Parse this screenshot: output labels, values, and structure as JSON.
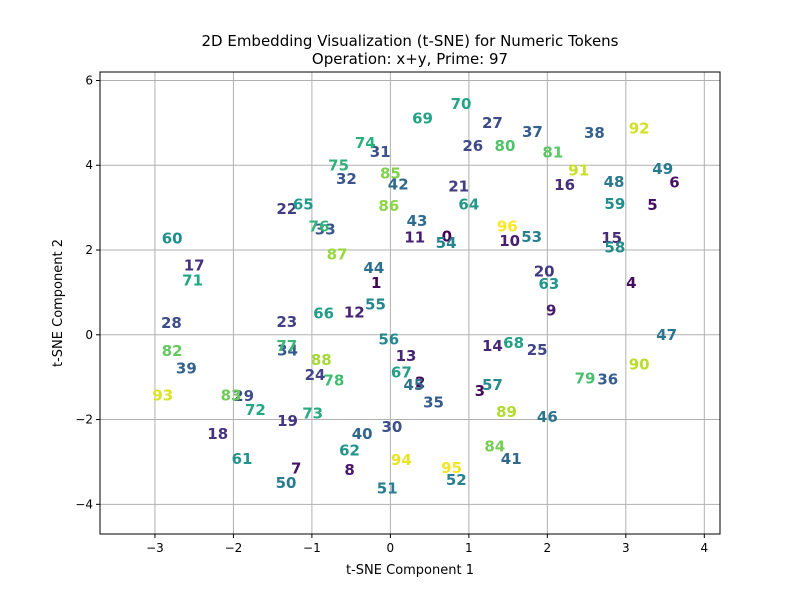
{
  "chart_data": {
    "type": "scatter",
    "title": "2D Embedding Visualization (t-SNE) for Numeric Tokens",
    "subtitle": "Operation: x+y, Prime: 97",
    "xlabel": "t-SNE Component 1",
    "ylabel": "t-SNE Component 2",
    "xlim": [
      -3.7,
      4.2
    ],
    "ylim": [
      -4.7,
      6.2
    ],
    "xticks": [
      -3,
      -2,
      -1,
      0,
      1,
      2,
      3,
      4
    ],
    "yticks": [
      -4,
      -2,
      0,
      2,
      4,
      6
    ],
    "xtick_labels": [
      "−3",
      "−2",
      "−1",
      "0",
      "1",
      "2",
      "3",
      "4"
    ],
    "ytick_labels": [
      "−4",
      "−2",
      "0",
      "2",
      "4",
      "6"
    ],
    "grid": true,
    "colormap": "viridis",
    "points": [
      {
        "label": "0",
        "x": 0.72,
        "y": 2.32
      },
      {
        "label": "1",
        "x": -0.18,
        "y": 1.22
      },
      {
        "label": "2",
        "x": 0.38,
        "y": -1.12
      },
      {
        "label": "3",
        "x": 1.14,
        "y": -1.33
      },
      {
        "label": "4",
        "x": 3.07,
        "y": 1.22
      },
      {
        "label": "5",
        "x": 3.34,
        "y": 3.06
      },
      {
        "label": "6",
        "x": 3.62,
        "y": 3.59
      },
      {
        "label": "7",
        "x": -1.2,
        "y": -3.15
      },
      {
        "label": "8",
        "x": -0.52,
        "y": -3.19
      },
      {
        "label": "9",
        "x": 2.05,
        "y": 0.57
      },
      {
        "label": "10",
        "x": 1.52,
        "y": 2.21
      },
      {
        "label": "11",
        "x": 0.31,
        "y": 2.29
      },
      {
        "label": "12",
        "x": -0.46,
        "y": 0.53
      },
      {
        "label": "13",
        "x": 0.2,
        "y": -0.5
      },
      {
        "label": "14",
        "x": 1.3,
        "y": -0.26
      },
      {
        "label": "15",
        "x": 2.82,
        "y": 2.28
      },
      {
        "label": "16",
        "x": 2.22,
        "y": 3.53
      },
      {
        "label": "17",
        "x": -2.5,
        "y": 1.63
      },
      {
        "label": "18",
        "x": -2.2,
        "y": -2.34
      },
      {
        "label": "19",
        "x": -1.31,
        "y": -2.03
      },
      {
        "label": "20",
        "x": 1.96,
        "y": 1.49
      },
      {
        "label": "21",
        "x": 0.87,
        "y": 3.5
      },
      {
        "label": "22",
        "x": -1.32,
        "y": 2.97
      },
      {
        "label": "23",
        "x": -1.32,
        "y": 0.3
      },
      {
        "label": "24",
        "x": -0.96,
        "y": -0.95
      },
      {
        "label": "25",
        "x": 1.87,
        "y": -0.36
      },
      {
        "label": "26",
        "x": 1.05,
        "y": 4.45
      },
      {
        "label": "27",
        "x": 1.3,
        "y": 5.0
      },
      {
        "label": "28",
        "x": -2.79,
        "y": 0.28
      },
      {
        "label": "29",
        "x": -1.87,
        "y": -1.45
      },
      {
        "label": "30",
        "x": 0.02,
        "y": -2.17
      },
      {
        "label": "31",
        "x": -0.13,
        "y": 4.31
      },
      {
        "label": "32",
        "x": -0.56,
        "y": 3.68
      },
      {
        "label": "33",
        "x": -0.83,
        "y": 2.48
      },
      {
        "label": "34",
        "x": -1.31,
        "y": -0.37
      },
      {
        "label": "35",
        "x": 0.55,
        "y": -1.6
      },
      {
        "label": "36",
        "x": 2.77,
        "y": -1.05
      },
      {
        "label": "37",
        "x": 1.81,
        "y": 4.79
      },
      {
        "label": "38",
        "x": 2.6,
        "y": 4.76
      },
      {
        "label": "39",
        "x": -2.6,
        "y": -0.8
      },
      {
        "label": "40",
        "x": -0.36,
        "y": -2.34
      },
      {
        "label": "41",
        "x": 1.54,
        "y": -2.93
      },
      {
        "label": "42",
        "x": 0.1,
        "y": 3.54
      },
      {
        "label": "43",
        "x": 0.34,
        "y": 2.69
      },
      {
        "label": "44",
        "x": -0.21,
        "y": 1.57
      },
      {
        "label": "45",
        "x": 0.3,
        "y": -1.18
      },
      {
        "label": "46",
        "x": 2.0,
        "y": -1.94
      },
      {
        "label": "47",
        "x": 3.52,
        "y": -0.01
      },
      {
        "label": "48",
        "x": 2.85,
        "y": 3.61
      },
      {
        "label": "49",
        "x": 3.47,
        "y": 3.91
      },
      {
        "label": "50",
        "x": -1.33,
        "y": -3.5
      },
      {
        "label": "51",
        "x": -0.04,
        "y": -3.63
      },
      {
        "label": "52",
        "x": 0.84,
        "y": -3.43
      },
      {
        "label": "53",
        "x": 1.8,
        "y": 2.31
      },
      {
        "label": "54",
        "x": 0.71,
        "y": 2.16
      },
      {
        "label": "55",
        "x": -0.19,
        "y": 0.71
      },
      {
        "label": "56",
        "x": -0.02,
        "y": -0.11
      },
      {
        "label": "57",
        "x": 1.3,
        "y": -1.19
      },
      {
        "label": "58",
        "x": 2.86,
        "y": 2.06
      },
      {
        "label": "59",
        "x": 2.86,
        "y": 3.08
      },
      {
        "label": "60",
        "x": -2.78,
        "y": 2.27
      },
      {
        "label": "61",
        "x": -1.89,
        "y": -2.93
      },
      {
        "label": "62",
        "x": -0.52,
        "y": -2.73
      },
      {
        "label": "63",
        "x": 2.02,
        "y": 1.2
      },
      {
        "label": "64",
        "x": 1.0,
        "y": 3.07
      },
      {
        "label": "65",
        "x": -1.11,
        "y": 3.07
      },
      {
        "label": "66",
        "x": -0.85,
        "y": 0.5
      },
      {
        "label": "67",
        "x": 0.14,
        "y": -0.89
      },
      {
        "label": "68",
        "x": 1.57,
        "y": -0.19
      },
      {
        "label": "69",
        "x": 0.41,
        "y": 5.1
      },
      {
        "label": "70",
        "x": 0.9,
        "y": 5.45
      },
      {
        "label": "71",
        "x": -2.52,
        "y": 1.28
      },
      {
        "label": "72",
        "x": -1.72,
        "y": -1.77
      },
      {
        "label": "73",
        "x": -0.99,
        "y": -1.86
      },
      {
        "label": "74",
        "x": -0.32,
        "y": 4.52
      },
      {
        "label": "75",
        "x": -0.66,
        "y": 3.99
      },
      {
        "label": "76",
        "x": -0.91,
        "y": 2.56
      },
      {
        "label": "77",
        "x": -1.32,
        "y": -0.26
      },
      {
        "label": "78",
        "x": -0.72,
        "y": -1.08
      },
      {
        "label": "79",
        "x": 2.48,
        "y": -1.03
      },
      {
        "label": "80",
        "x": 1.46,
        "y": 4.46
      },
      {
        "label": "81",
        "x": 2.07,
        "y": 4.3
      },
      {
        "label": "82",
        "x": -2.78,
        "y": -0.38
      },
      {
        "label": "83",
        "x": -2.03,
        "y": -1.43
      },
      {
        "label": "84",
        "x": 1.33,
        "y": -2.63
      },
      {
        "label": "85",
        "x": 0.0,
        "y": 3.81
      },
      {
        "label": "86",
        "x": -0.02,
        "y": 3.04
      },
      {
        "label": "87",
        "x": -0.68,
        "y": 1.9
      },
      {
        "label": "88",
        "x": -0.88,
        "y": -0.6
      },
      {
        "label": "89",
        "x": 1.48,
        "y": -1.82
      },
      {
        "label": "90",
        "x": 3.17,
        "y": -0.7
      },
      {
        "label": "91",
        "x": 2.4,
        "y": 3.88
      },
      {
        "label": "92",
        "x": 3.17,
        "y": 4.87
      },
      {
        "label": "93",
        "x": -2.9,
        "y": -1.43
      },
      {
        "label": "94",
        "x": 0.14,
        "y": -2.96
      },
      {
        "label": "95",
        "x": 0.78,
        "y": -3.14
      },
      {
        "label": "96",
        "x": 1.49,
        "y": 2.56
      }
    ]
  }
}
